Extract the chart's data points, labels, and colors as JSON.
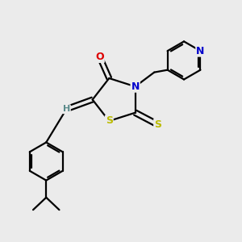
{
  "bg_color": "#ebebeb",
  "atom_colors": {
    "C": "#000000",
    "H": "#5a8a8a",
    "N": "#0000cc",
    "O": "#dd0000",
    "S": "#bbbb00"
  },
  "figsize": [
    3.0,
    3.0
  ],
  "dpi": 100
}
